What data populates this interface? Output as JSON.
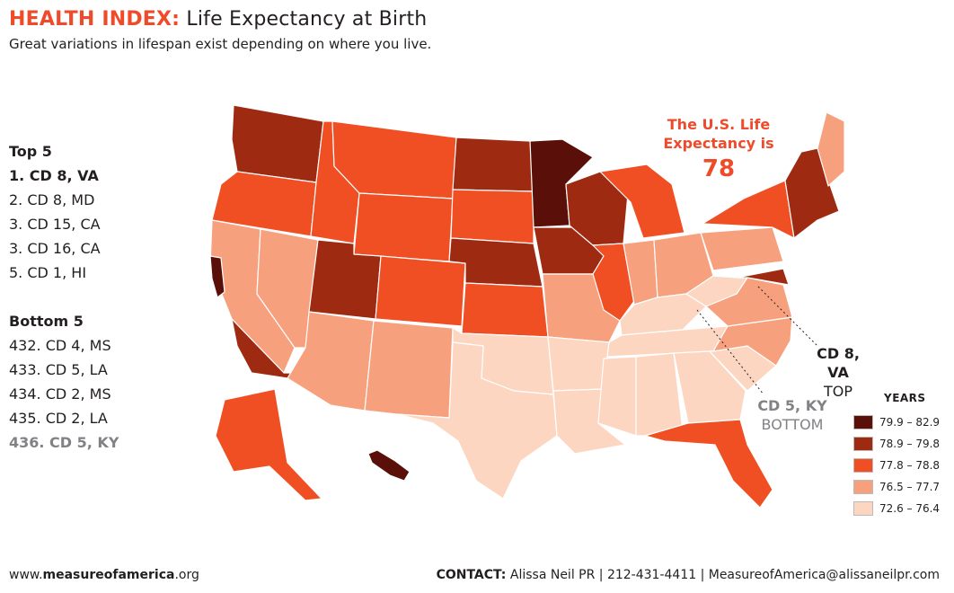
{
  "header": {
    "title_brand": "HEALTH INDEX:",
    "title_rest": "Life Expectancy at Birth",
    "subtitle": "Great variations in lifespan exist depending on where you live."
  },
  "top5": {
    "heading": "Top 5",
    "items": [
      "1. CD 8, VA",
      "2. CD 8, MD",
      "3. CD 15, CA",
      "3. CD 16, CA",
      "5. CD 1, HI"
    ]
  },
  "bottom5": {
    "heading": "Bottom 5",
    "items": [
      "432. CD 4, MS",
      "433. CD 5, LA",
      "434. CD 2, MS",
      "435. CD 2, LA",
      "436. CD 5, KY"
    ]
  },
  "callout": {
    "line1": "The U.S. Life",
    "line2": "Expectancy is",
    "value": "78"
  },
  "labels": {
    "top_district": "CD 8, VA",
    "top_word": "TOP",
    "bottom_district": "CD 5, KY",
    "bottom_word": "BOTTOM"
  },
  "legend": {
    "title": "YEARS",
    "items": [
      {
        "label": "79.9 – 82.9",
        "color": "#5a0f08"
      },
      {
        "label": "78.9 – 79.8",
        "color": "#9e2a12"
      },
      {
        "label": "77.8 – 78.8",
        "color": "#f04e23"
      },
      {
        "label": "76.5 – 77.7",
        "color": "#f7a07e"
      },
      {
        "label": "72.6 – 76.4",
        "color": "#fcd6c0"
      }
    ]
  },
  "footer": {
    "site_prefix": "www.",
    "site_bold": "measureofamerica",
    "site_suffix": ".org",
    "contact_label": "CONTACT:",
    "contact_text": "Alissa Neil PR | 212-431-4411 | MeasureofAmerica@alissaneilpr.com"
  },
  "map_regions": [
    {
      "name": "washington",
      "tier": 1
    },
    {
      "name": "oregon",
      "tier": 2
    },
    {
      "name": "california-north",
      "tier": 3
    },
    {
      "name": "california-bay",
      "tier": 0
    },
    {
      "name": "california-south",
      "tier": 1
    },
    {
      "name": "nevada",
      "tier": 3
    },
    {
      "name": "idaho",
      "tier": 2
    },
    {
      "name": "montana",
      "tier": 2
    },
    {
      "name": "wyoming",
      "tier": 2
    },
    {
      "name": "utah",
      "tier": 1
    },
    {
      "name": "colorado",
      "tier": 2
    },
    {
      "name": "arizona",
      "tier": 3
    },
    {
      "name": "new-mexico",
      "tier": 3
    },
    {
      "name": "north-dakota",
      "tier": 1
    },
    {
      "name": "south-dakota",
      "tier": 2
    },
    {
      "name": "nebraska",
      "tier": 1
    },
    {
      "name": "kansas",
      "tier": 2
    },
    {
      "name": "oklahoma",
      "tier": 4
    },
    {
      "name": "texas",
      "tier": 4
    },
    {
      "name": "minnesota",
      "tier": 0
    },
    {
      "name": "iowa",
      "tier": 1
    },
    {
      "name": "missouri",
      "tier": 3
    },
    {
      "name": "arkansas",
      "tier": 4
    },
    {
      "name": "louisiana",
      "tier": 4
    },
    {
      "name": "wisconsin",
      "tier": 1
    },
    {
      "name": "illinois",
      "tier": 2
    },
    {
      "name": "michigan",
      "tier": 2
    },
    {
      "name": "indiana",
      "tier": 3
    },
    {
      "name": "ohio",
      "tier": 3
    },
    {
      "name": "kentucky",
      "tier": 4
    },
    {
      "name": "tennessee",
      "tier": 4
    },
    {
      "name": "mississippi",
      "tier": 4
    },
    {
      "name": "alabama",
      "tier": 4
    },
    {
      "name": "georgia",
      "tier": 4
    },
    {
      "name": "florida",
      "tier": 2
    },
    {
      "name": "south-carolina",
      "tier": 4
    },
    {
      "name": "north-carolina",
      "tier": 3
    },
    {
      "name": "virginia",
      "tier": 3
    },
    {
      "name": "west-virginia",
      "tier": 4
    },
    {
      "name": "pennsylvania",
      "tier": 3
    },
    {
      "name": "new-york",
      "tier": 2
    },
    {
      "name": "new-england",
      "tier": 1
    },
    {
      "name": "maine",
      "tier": 3
    },
    {
      "name": "maryland",
      "tier": 1
    },
    {
      "name": "alaska",
      "tier": 2
    },
    {
      "name": "hawaii",
      "tier": 0
    }
  ]
}
